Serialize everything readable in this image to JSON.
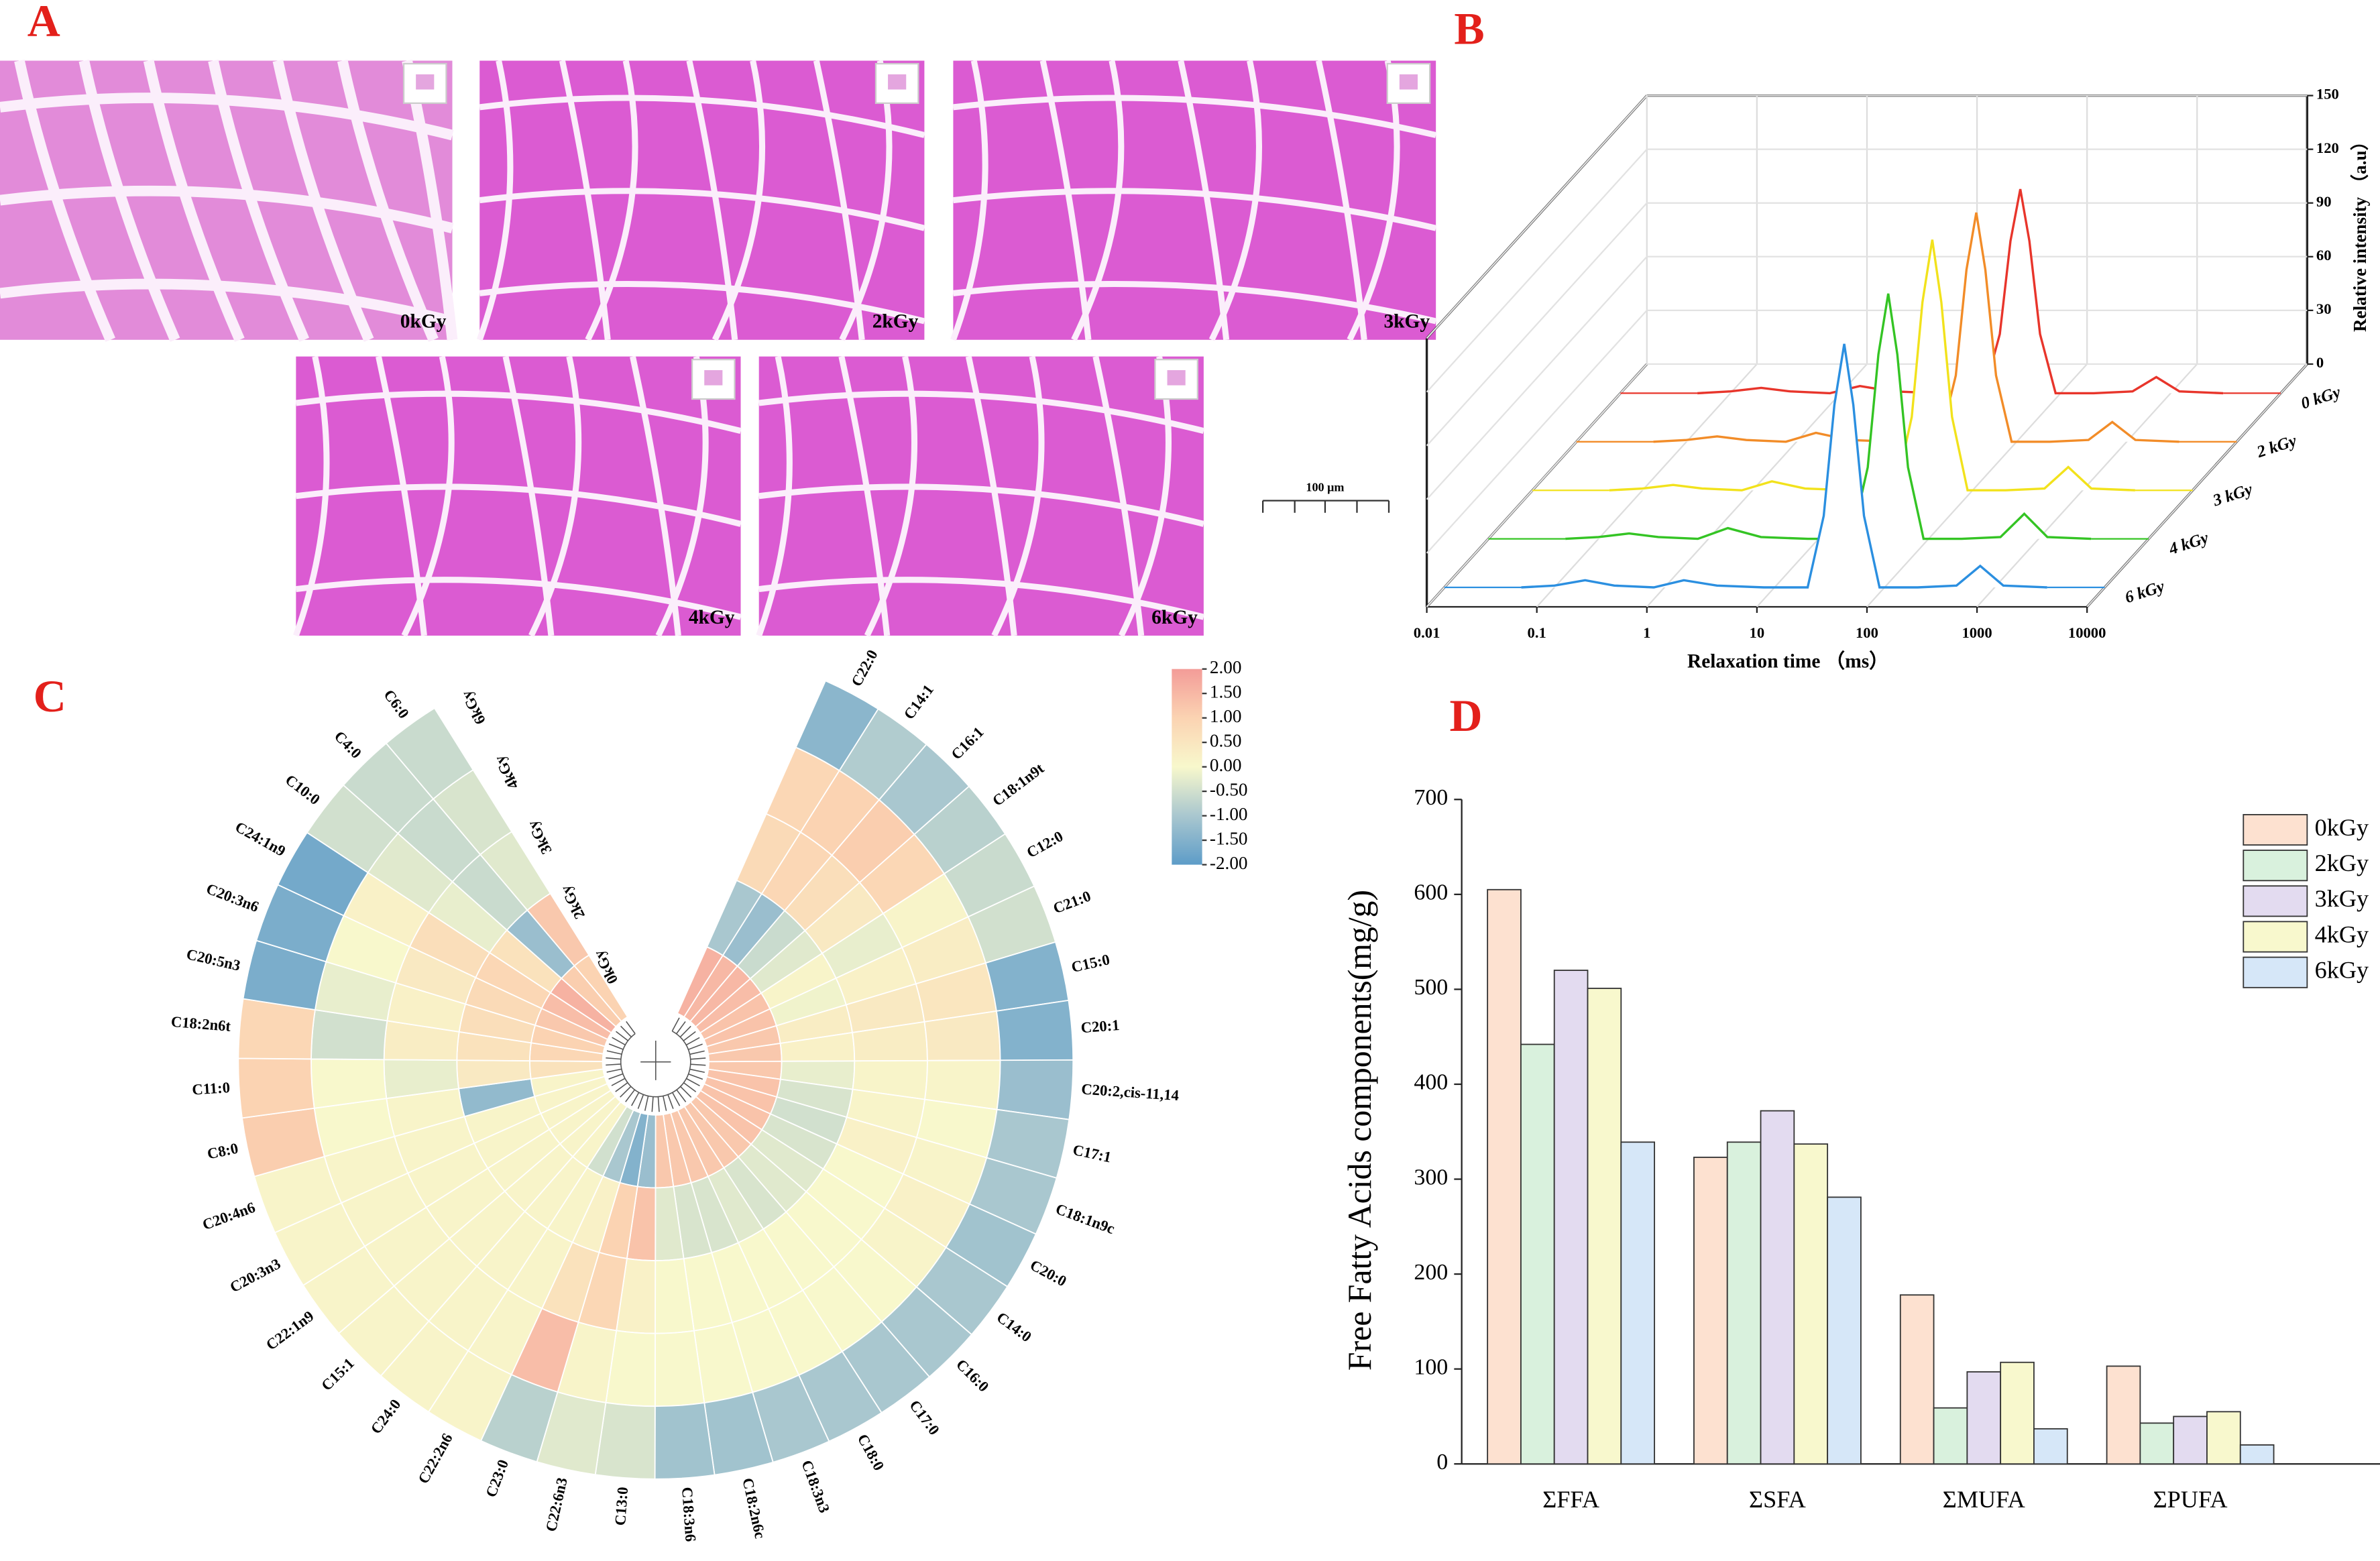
{
  "panel_a": {
    "label": "A",
    "images": [
      "0kGy",
      "2kGy",
      "3kGy",
      "4kGy",
      "6kGy"
    ],
    "scale_bar": "100 μm"
  },
  "chart_data": [
    {
      "type": "waterfall",
      "label": "B",
      "xlabel": "Relaxation time （ms）",
      "zlabel": "Relative intensity （a.u）",
      "log_x": true,
      "xlim": [
        0.01,
        10000
      ],
      "xticks": [
        0.01,
        0.1,
        1,
        10,
        100,
        1000,
        10000
      ],
      "zlim": [
        0,
        150
      ],
      "zticks": [
        0,
        30,
        60,
        90,
        120,
        150
      ],
      "x": [
        0.05,
        0.1,
        0.19,
        0.35,
        0.8,
        1.5,
        3,
        8,
        20,
        28,
        35,
        43,
        52,
        65,
        90,
        200,
        450,
        740,
        1200,
        3000
      ],
      "series": [
        {
          "name": "0 kGy",
          "color": "#e8352b",
          "values": [
            0,
            1,
            3,
            1,
            0,
            4,
            1,
            0,
            0,
            33,
            85,
            114,
            85,
            33,
            0,
            0,
            1,
            9,
            1,
            0
          ]
        },
        {
          "name": "2 kGy",
          "color": "#f28c28",
          "values": [
            0,
            1,
            3,
            1,
            0,
            5,
            1,
            0,
            0,
            37,
            96,
            128,
            96,
            37,
            0,
            0,
            1,
            11,
            1,
            0
          ]
        },
        {
          "name": "3 kGy",
          "color": "#f2e21c",
          "values": [
            0,
            1,
            3,
            1,
            0,
            5,
            1,
            0,
            0,
            41,
            105,
            140,
            105,
            41,
            0,
            0,
            1,
            13,
            1,
            0
          ]
        },
        {
          "name": "4 kGy",
          "color": "#34c424",
          "values": [
            0,
            1,
            3,
            1,
            0,
            6,
            1,
            0,
            0,
            40,
            103,
            137,
            103,
            40,
            0,
            0,
            1,
            14,
            1,
            0
          ]
        },
        {
          "name": "6 kGy",
          "color": "#2b8fe0",
          "values": [
            0,
            1,
            4,
            1,
            0,
            4,
            1,
            0,
            0,
            40,
            102,
            136,
            102,
            40,
            0,
            0,
            1,
            12,
            1,
            0
          ]
        }
      ]
    },
    {
      "type": "heatmap",
      "label": "C",
      "clim": [
        -2,
        2
      ],
      "colormap": [
        "#5d9cc8",
        "#a9c7cf",
        "#f8f8cc",
        "#fbd3b2",
        "#f39c98"
      ],
      "colorbar_ticks": [
        {
          "value": 2,
          "label": "2.00"
        },
        {
          "value": 1.5,
          "label": "1.50"
        },
        {
          "value": 1,
          "label": "1.00"
        },
        {
          "value": 0.5,
          "label": "0.50"
        },
        {
          "value": 0,
          "label": "0.00"
        },
        {
          "value": -0.5,
          "label": "-0.50"
        },
        {
          "value": -1,
          "label": "-1.00"
        },
        {
          "value": -1.5,
          "label": "-1.50"
        },
        {
          "value": -2,
          "label": "-2.00"
        }
      ],
      "categories": [
        "C22:0",
        "C14:1",
        "C16:1",
        "C18:1n9t",
        "C12:0",
        "C21:0",
        "C15:0",
        "C20:1",
        "C20:2,cis-11,14",
        "C17:1",
        "C18:1n9c",
        "C20:0",
        "C14:0",
        "C16:0",
        "C17:0",
        "C18:0",
        "C18:3n3",
        "C18:2n6c",
        "C18:3n6",
        "C13:0",
        "C22:6n3",
        "C23:0",
        "C22:2n6",
        "C24:0",
        "C15:1",
        "C22:1n9",
        "C20:3n3",
        "C20:4n6",
        "C8:0",
        "C11:0",
        "C18:2n6t",
        "C20:5n3",
        "C20:3n6",
        "C24:1n9",
        "C10:0",
        "C4:0",
        "C6:0"
      ],
      "series": [
        {
          "name": "0kGy",
          "values": [
            1.6,
            1.5,
            1.5,
            1.4,
            1.3,
            1.3,
            1.2,
            1.2,
            1.2,
            1.3,
            1.3,
            1.3,
            1.3,
            1.2,
            1.2,
            1.2,
            1.2,
            1.2,
            1.2,
            -1.2,
            -1.5,
            -1.0,
            -0.5,
            0.1,
            0.1,
            0.1,
            0.1,
            0.1,
            0.1,
            0.6,
            0.9,
            1.0,
            1.2,
            1.4,
            1.6,
            1.1,
            1.0
          ]
        },
        {
          "name": "2kGy",
          "values": [
            -1.0,
            -1.2,
            -0.6,
            -0.3,
            0.1,
            -0.1,
            0.3,
            0.2,
            -0.2,
            -0.4,
            -0.5,
            -0.4,
            -0.3,
            -0.3,
            -0.4,
            -0.3,
            -0.4,
            -0.4,
            -0.3,
            1.3,
            1.0,
            0.2,
            0.1,
            0.1,
            0.1,
            0.1,
            0.1,
            0.1,
            -1.3,
            0.4,
            0.6,
            0.7,
            0.8,
            0.9,
            0.6,
            -1.2,
            1.2
          ]
        },
        {
          "name": "3kGy",
          "values": [
            0.8,
            0.9,
            0.7,
            0.4,
            -0.2,
            0.2,
            0.4,
            0.3,
            0.1,
            0.1,
            0.2,
            0.0,
            0.0,
            0.0,
            0.0,
            0.0,
            0.0,
            0.0,
            0.0,
            0.2,
            0.9,
            0.6,
            0.1,
            0.1,
            0.1,
            0.1,
            0.1,
            0.1,
            0.1,
            -0.2,
            0.3,
            0.2,
            0.4,
            0.7,
            -0.2,
            -0.6,
            -0.3
          ]
        },
        {
          "name": "4kGy",
          "values": [
            0.9,
            1.0,
            1.1,
            0.9,
            0.1,
            0.3,
            0.5,
            0.4,
            0.1,
            0.0,
            0.1,
            0.2,
            0.1,
            0.0,
            0.0,
            0.0,
            0.0,
            0.0,
            0.0,
            0.0,
            0.1,
            1.4,
            0.1,
            0.1,
            0.1,
            0.1,
            0.1,
            0.1,
            0.0,
            0.0,
            -0.5,
            -0.2,
            0.0,
            0.2,
            -0.3,
            -0.6,
            -0.4
          ]
        },
        {
          "name": "6kGy",
          "values": [
            -1.4,
            -0.9,
            -1.0,
            -0.8,
            -0.6,
            -0.5,
            -1.5,
            -1.5,
            -1.2,
            -1.0,
            -1.0,
            -1.1,
            -1.0,
            -1.0,
            -1.0,
            -1.0,
            -1.0,
            -1.1,
            -1.1,
            -0.4,
            -0.3,
            -0.8,
            0.1,
            0.1,
            0.1,
            0.1,
            0.1,
            0.1,
            1.1,
            1.0,
            0.9,
            -1.6,
            -1.6,
            -1.7,
            -0.5,
            -0.6,
            -0.6
          ]
        }
      ]
    },
    {
      "type": "bar",
      "label": "D",
      "ylabel": "Free Fatty Acids components(mg/g)",
      "categories": [
        "ΣFFA",
        "ΣSFA",
        "ΣMUFA",
        "ΣPUFA"
      ],
      "ylim": [
        0,
        700
      ],
      "yticks": [
        0,
        100,
        200,
        300,
        400,
        500,
        600,
        700
      ],
      "legend": "upper right",
      "series": [
        {
          "name": "0kGy",
          "color": "#fde1d0",
          "values": [
            605,
            323,
            178,
            103
          ]
        },
        {
          "name": "2kGy",
          "color": "#d9f1dd",
          "values": [
            442,
            339,
            59,
            43
          ]
        },
        {
          "name": "3kGy",
          "color": "#e3dbf0",
          "values": [
            520,
            372,
            97,
            50
          ]
        },
        {
          "name": "4kGy",
          "color": "#f8f8cd",
          "values": [
            501,
            337,
            107,
            55
          ]
        },
        {
          "name": "6kGy",
          "color": "#d6e7f8",
          "values": [
            339,
            281,
            37,
            20
          ]
        }
      ]
    }
  ]
}
